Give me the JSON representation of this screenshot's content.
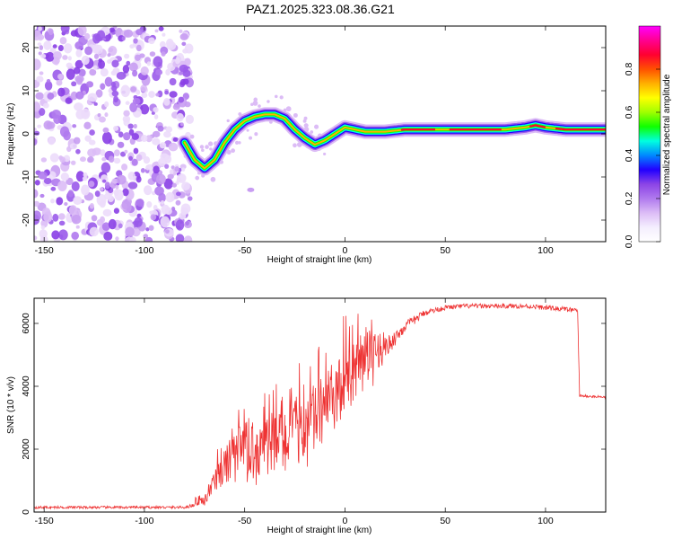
{
  "title": "PAZ1.2025.323.08.36.G21",
  "chart_data": [
    {
      "type": "heatmap",
      "title": "PAZ1.2025.323.08.36.G21",
      "xlabel": "Height of straight line (km)",
      "ylabel": "Frequency (Hz)",
      "xlim": [
        -155,
        130
      ],
      "ylim": [
        -25,
        25
      ],
      "xticks": [
        -150,
        -100,
        -50,
        0,
        50,
        100
      ],
      "yticks": [
        -20,
        -10,
        0,
        10,
        20
      ],
      "ridge": {
        "x": [
          -80,
          -75,
          -70,
          -65,
          -60,
          -55,
          -50,
          -45,
          -40,
          -35,
          -30,
          -25,
          -20,
          -15,
          -10,
          -5,
          0,
          5,
          10,
          15,
          20,
          30,
          40,
          50,
          60,
          70,
          80,
          90,
          95,
          100,
          110,
          120,
          130
        ],
        "y": [
          -2,
          -6,
          -8,
          -6,
          -2,
          1,
          3,
          4,
          4.5,
          4.5,
          3.5,
          1,
          -1,
          -2.5,
          -1.5,
          0,
          1.5,
          1,
          0.5,
          0.5,
          0.5,
          1,
          1,
          1,
          1,
          1,
          1,
          1.5,
          2,
          1.5,
          1,
          1,
          1
        ]
      },
      "colorbar": {
        "label": "Normalized spectral amplitude",
        "ticks": [
          "0.0",
          "0.2",
          "0.4",
          "0.6",
          "0.8"
        ],
        "colors": [
          "#ffffff",
          "#f4eefe",
          "#dcbcf6",
          "#b07aee",
          "#8c44e6",
          "#2200ff",
          "#0088ff",
          "#00ffe0",
          "#10ff00",
          "#a0ff00",
          "#ffff00",
          "#ffb000",
          "#ff5000",
          "#ff0030",
          "#ff0090",
          "#ff00ff"
        ]
      }
    },
    {
      "type": "line",
      "xlabel": "Height of straight line (km)",
      "ylabel": "SNR (10 * v/v)",
      "xlim": [
        -155,
        130
      ],
      "ylim": [
        0,
        6800
      ],
      "xticks": [
        -150,
        -100,
        -50,
        0,
        50,
        100
      ],
      "yticks": [
        0,
        2000,
        4000,
        6000
      ],
      "color": "#ee3333",
      "envelope": {
        "x": [
          -155,
          -80,
          -70,
          -60,
          -50,
          -40,
          -30,
          -20,
          -10,
          0,
          10,
          20,
          30,
          40,
          50,
          60,
          70,
          80,
          90,
          100,
          110,
          116,
          117,
          130
        ],
        "mean": [
          150,
          150,
          300,
          1200,
          1600,
          1700,
          1900,
          2300,
          2900,
          3600,
          4400,
          5200,
          5900,
          6350,
          6500,
          6550,
          6550,
          6550,
          6550,
          6500,
          6450,
          6400,
          3700,
          3650
        ],
        "spread": [
          80,
          80,
          200,
          900,
          1400,
          1400,
          1500,
          1500,
          1600,
          1600,
          1200,
          700,
          350,
          200,
          150,
          150,
          150,
          150,
          150,
          150,
          150,
          150,
          80,
          80
        ]
      }
    }
  ]
}
